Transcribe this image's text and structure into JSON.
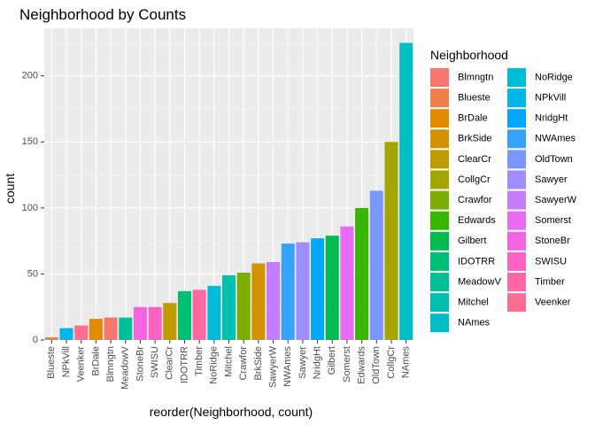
{
  "chart_data": {
    "type": "bar",
    "title": "Neighborhood by Counts",
    "xlabel": "reorder(Neighborhood, count)",
    "ylabel": "count",
    "ylim": [
      0,
      236
    ],
    "yticks": [
      0,
      50,
      100,
      150,
      200
    ],
    "grid": true,
    "legend_position": "right",
    "legend_title": "Neighborhood",
    "categories": [
      "Blueste",
      "NPkVill",
      "Veenker",
      "BrDale",
      "Blmngtn",
      "MeadowV",
      "StoneBr",
      "SWISU",
      "ClearCr",
      "IDOTRR",
      "Timber",
      "NoRidge",
      "Mitchel",
      "Crawfor",
      "BrkSide",
      "SawyerW",
      "NWAmes",
      "Sawyer",
      "NridgHt",
      "Gilbert",
      "Somerst",
      "Edwards",
      "OldTown",
      "CollgCr",
      "NAmes"
    ],
    "values": [
      2,
      9,
      11,
      16,
      17,
      17,
      25,
      25,
      28,
      37,
      38,
      41,
      49,
      51,
      58,
      59,
      73,
      74,
      77,
      79,
      86,
      100,
      113,
      150,
      225
    ],
    "legend": [
      {
        "name": "Blmngtn",
        "color": "#F8766D"
      },
      {
        "name": "Blueste",
        "color": "#EF7F49"
      },
      {
        "name": "BrDale",
        "color": "#E38900"
      },
      {
        "name": "BrkSide",
        "color": "#D39200"
      },
      {
        "name": "ClearCr",
        "color": "#C09B00"
      },
      {
        "name": "CollgCr",
        "color": "#A3A500"
      },
      {
        "name": "Crawfor",
        "color": "#7CAE00"
      },
      {
        "name": "Edwards",
        "color": "#39B600"
      },
      {
        "name": "Gilbert",
        "color": "#00BB4E"
      },
      {
        "name": "IDOTRR",
        "color": "#00BF74"
      },
      {
        "name": "MeadowV",
        "color": "#00C097"
      },
      {
        "name": "Mitchel",
        "color": "#00C0B0"
      },
      {
        "name": "NAmes",
        "color": "#00BFC4"
      },
      {
        "name": "NoRidge",
        "color": "#00BCD8"
      },
      {
        "name": "NPkVill",
        "color": "#00B6EB"
      },
      {
        "name": "NridgHt",
        "color": "#00A9FF"
      },
      {
        "name": "NWAmes",
        "color": "#35A2FF"
      },
      {
        "name": "OldTown",
        "color": "#7997FF"
      },
      {
        "name": "Sawyer",
        "color": "#9F8CFF"
      },
      {
        "name": "SawyerW",
        "color": "#C77CFF"
      },
      {
        "name": "Somerst",
        "color": "#E76BF3"
      },
      {
        "name": "StoneBr",
        "color": "#F563E3"
      },
      {
        "name": "SWISU",
        "color": "#FF61C3"
      },
      {
        "name": "Timber",
        "color": "#FF67A4"
      },
      {
        "name": "Veenker",
        "color": "#FF6C91"
      }
    ]
  }
}
